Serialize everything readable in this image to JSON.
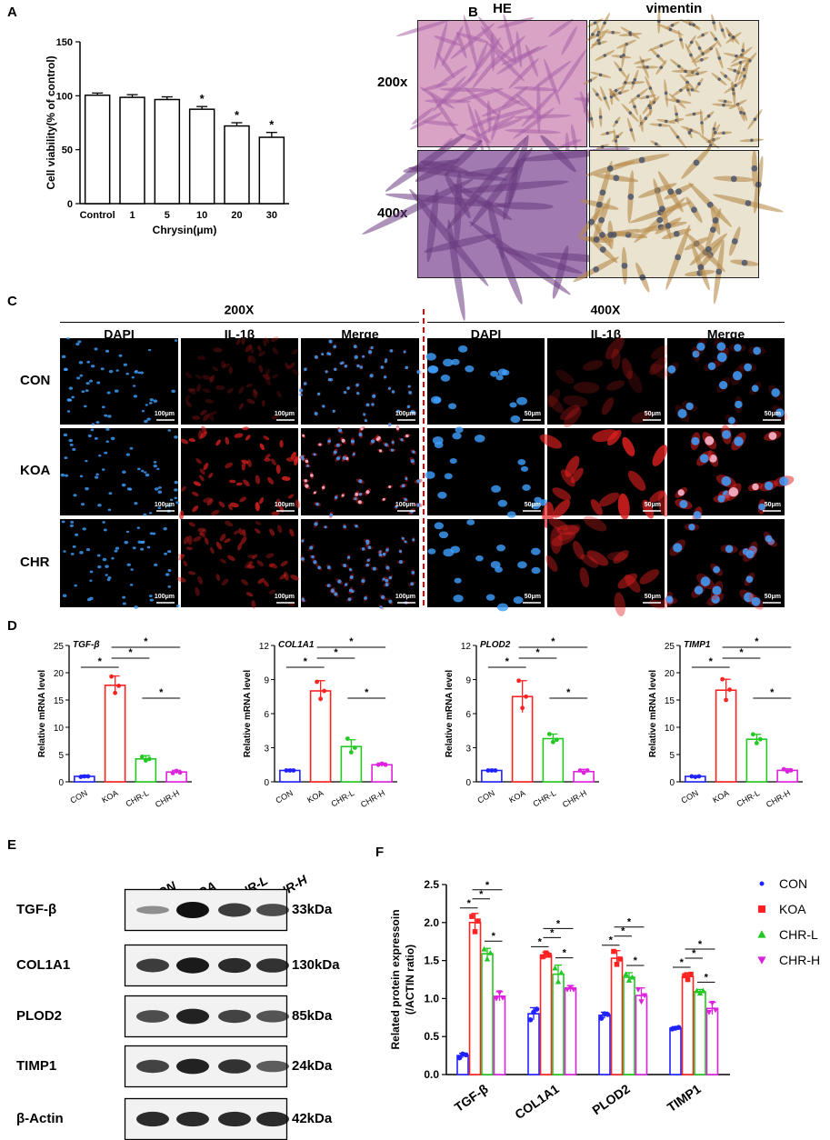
{
  "panel_labels": [
    "A",
    "B",
    "C",
    "D",
    "E",
    "F"
  ],
  "chart_data": [
    {
      "panel": "A",
      "type": "bar",
      "categories": [
        "Control",
        "1",
        "5",
        "10",
        "20",
        "30"
      ],
      "values": [
        100.5,
        98.5,
        96.5,
        87.5,
        72,
        61.5
      ],
      "errors": [
        2,
        2.5,
        2.5,
        2.5,
        3,
        4.5
      ],
      "significance": [
        "",
        "",
        "",
        "*",
        "*",
        "*"
      ],
      "title": "",
      "xlabel": "Chrysin(μm)",
      "ylabel": "Cell viability(% of control)",
      "ylim": [
        0,
        150
      ],
      "yticks": [
        0,
        50,
        100,
        150
      ],
      "colors": {
        "fill": "#ffffff",
        "edge": "#000000"
      },
      "grid": false
    },
    {
      "panel": "D",
      "type": "bar",
      "title": "TGF-β",
      "ylabel": "Relative mRNA level",
      "categories": [
        "CON",
        "KOA",
        "CHR-L",
        "CHR-H"
      ],
      "values": [
        1.0,
        17.7,
        4.2,
        1.8
      ],
      "errors": [
        0.2,
        1.7,
        0.6,
        0.3
      ],
      "points": [
        [
          0.9,
          1.0,
          1.0
        ],
        [
          19.3,
          16.3,
          17.6
        ],
        [
          4.6,
          3.9,
          4.2
        ],
        [
          1.6,
          2.0,
          1.7
        ]
      ],
      "ylim": [
        0,
        25
      ],
      "yticks": [
        0,
        5,
        10,
        15,
        20,
        25
      ],
      "brackets": [
        [
          0,
          1,
          "*"
        ],
        [
          1,
          2,
          "*"
        ],
        [
          1,
          3,
          "*"
        ],
        [
          2,
          3,
          "*"
        ]
      ],
      "colors": [
        "#1f22ff",
        "#ff2222",
        "#23c823",
        "#dd22dd"
      ],
      "grid": false
    },
    {
      "panel": "D",
      "type": "bar",
      "title": "COL1A1",
      "ylabel": "Relative mRNA level",
      "categories": [
        "CON",
        "KOA",
        "CHR-L",
        "CHR-H"
      ],
      "values": [
        1.0,
        8.0,
        3.1,
        1.5
      ],
      "errors": [
        0.1,
        0.9,
        0.6,
        0.15
      ],
      "points": [
        [
          1.0,
          1.0,
          1.0
        ],
        [
          8.8,
          7.3,
          8.0
        ],
        [
          3.8,
          2.6,
          3.0
        ],
        [
          1.5,
          1.6,
          1.5
        ]
      ],
      "ylim": [
        0,
        12
      ],
      "yticks": [
        0,
        3,
        6,
        9,
        12
      ],
      "brackets": [
        [
          0,
          1,
          "*"
        ],
        [
          1,
          2,
          "*"
        ],
        [
          1,
          3,
          "*"
        ],
        [
          2,
          3,
          "*"
        ]
      ],
      "colors": [
        "#1f22ff",
        "#ff2222",
        "#23c823",
        "#dd22dd"
      ],
      "grid": false
    },
    {
      "panel": "D",
      "type": "bar",
      "title": "PLOD2",
      "ylabel": "Relative mRNA level",
      "categories": [
        "CON",
        "KOA",
        "CHR-L",
        "CHR-H"
      ],
      "values": [
        1.0,
        7.5,
        3.8,
        0.9
      ],
      "errors": [
        0.1,
        1.4,
        0.4,
        0.2
      ],
      "points": [
        [
          1.0,
          1.0,
          1.0
        ],
        [
          8.9,
          6.5,
          7.5
        ],
        [
          4.2,
          3.5,
          3.7
        ],
        [
          1.0,
          0.8,
          1.0
        ]
      ],
      "ylim": [
        0,
        12
      ],
      "yticks": [
        0,
        3,
        6,
        9,
        12
      ],
      "brackets": [
        [
          0,
          1,
          "*"
        ],
        [
          1,
          2,
          "*"
        ],
        [
          1,
          3,
          "*"
        ],
        [
          2,
          3,
          "*"
        ]
      ],
      "colors": [
        "#1f22ff",
        "#ff2222",
        "#23c823",
        "#dd22dd"
      ],
      "grid": false
    },
    {
      "panel": "D",
      "type": "bar",
      "title": "TIMP1",
      "ylabel": "Relative mRNA level",
      "categories": [
        "CON",
        "KOA",
        "CHR-L",
        "CHR-H"
      ],
      "values": [
        1.0,
        16.8,
        7.8,
        2.1
      ],
      "errors": [
        0.1,
        2.0,
        0.9,
        0.3
      ],
      "points": [
        [
          1.0,
          0.9,
          1.0
        ],
        [
          18.8,
          15.0,
          16.9
        ],
        [
          8.7,
          7.1,
          7.8
        ],
        [
          2.3,
          1.9,
          2.1
        ]
      ],
      "ylim": [
        0,
        25
      ],
      "yticks": [
        0,
        5,
        10,
        15,
        20,
        25
      ],
      "brackets": [
        [
          0,
          1,
          "*"
        ],
        [
          1,
          2,
          "*"
        ],
        [
          1,
          3,
          "*"
        ],
        [
          2,
          3,
          "*"
        ]
      ],
      "colors": [
        "#1f22ff",
        "#ff2222",
        "#23c823",
        "#dd22dd"
      ],
      "grid": false
    },
    {
      "panel": "F",
      "type": "bar",
      "ylabel_lines": [
        "Related protein expressoin",
        "(/ACTIN ratio)"
      ],
      "categories": [
        "TGF-β",
        "COL1A1",
        "PLOD2",
        "TIMP1"
      ],
      "ylim": [
        0,
        2.5
      ],
      "yticks": [
        0.0,
        0.5,
        1.0,
        1.5,
        2.0,
        2.5
      ],
      "series": [
        {
          "name": "CON",
          "color": "#1f22ff",
          "marker": "circle",
          "values": [
            0.25,
            0.8,
            0.78,
            0.61
          ],
          "errors": [
            0.03,
            0.08,
            0.04,
            0.02
          ],
          "points": [
            [
              0.22,
              0.27,
              0.26
            ],
            [
              0.72,
              0.82,
              0.86
            ],
            [
              0.74,
              0.8,
              0.79
            ],
            [
              0.6,
              0.61,
              0.62
            ]
          ]
        },
        {
          "name": "KOA",
          "color": "#ff2222",
          "marker": "square",
          "values": [
            2.0,
            1.57,
            1.53,
            1.29
          ],
          "errors": [
            0.12,
            0.04,
            0.1,
            0.05
          ],
          "points": [
            [
              2.08,
              1.88,
              2.02
            ],
            [
              1.55,
              1.6,
              1.57
            ],
            [
              1.62,
              1.45,
              1.52
            ],
            [
              1.3,
              1.25,
              1.32
            ]
          ]
        },
        {
          "name": "CHR-L",
          "color": "#23c823",
          "marker": "triangle-up",
          "values": [
            1.59,
            1.32,
            1.28,
            1.09
          ],
          "errors": [
            0.07,
            0.12,
            0.06,
            0.03
          ],
          "points": [
            [
              1.65,
              1.52,
              1.6
            ],
            [
              1.4,
              1.22,
              1.34
            ],
            [
              1.32,
              1.24,
              1.28
            ],
            [
              1.1,
              1.07,
              1.1
            ]
          ]
        },
        {
          "name": "CHR-H",
          "color": "#dd22dd",
          "marker": "triangle-down",
          "values": [
            1.03,
            1.13,
            1.04,
            0.87
          ],
          "errors": [
            0.06,
            0.04,
            0.1,
            0.08
          ],
          "points": [
            [
              1.0,
              1.08,
              1.01
            ],
            [
              1.12,
              1.15,
              1.12
            ],
            [
              1.12,
              0.96,
              1.04
            ],
            [
              0.82,
              0.94,
              0.85
            ]
          ]
        }
      ],
      "brackets": [
        [
          0,
          1,
          "*"
        ],
        [
          1,
          2,
          "*"
        ],
        [
          1,
          3,
          "*"
        ],
        [
          2,
          3,
          "*"
        ]
      ],
      "legend": "right",
      "grid": false
    }
  ],
  "panelB": {
    "columns": [
      "HE",
      "vimentin"
    ],
    "rows": [
      "200x",
      "400x"
    ],
    "colors": {
      "he": "#d9a3c6",
      "he_cell": "#a862a8",
      "he_dark": "#a07ab0",
      "he_dark_cell": "#6a3a80",
      "vim": "#e9e3d0",
      "vim_cell": "#b88a4a",
      "vim_nucleus": "#3a4a6a"
    }
  },
  "panelC": {
    "groups": [
      "200X",
      "400X"
    ],
    "columns": [
      "DAPI",
      "IL-1β",
      "Merge",
      "DAPI",
      "IL-1β",
      "Merge"
    ],
    "rows": [
      "CON",
      "KOA",
      "CHR"
    ],
    "scalebars": [
      "100μm",
      "100μm",
      "100μm",
      "50μm",
      "50μm",
      "50μm"
    ],
    "colors": {
      "dapi": "#3fa0ff",
      "il1b": "#e02020",
      "merge_hi": "#ffc0d8",
      "divider": "#e00000"
    }
  },
  "panelE": {
    "lanes": [
      "CON",
      "KOA",
      "CHR-L",
      "CHR-H"
    ],
    "blots": [
      {
        "name": "TGF-β",
        "kda": "33kDa",
        "intensity": [
          0.25,
          1.0,
          0.75,
          0.65
        ]
      },
      {
        "name": "COL1A1",
        "kda": "130kDa",
        "intensity": [
          0.75,
          0.95,
          0.85,
          0.8
        ]
      },
      {
        "name": "PLOD2",
        "kda": "85kDa",
        "intensity": [
          0.65,
          0.9,
          0.7,
          0.6
        ]
      },
      {
        "name": "TIMP1",
        "kda": "24kDa",
        "intensity": [
          0.7,
          0.9,
          0.8,
          0.55
        ]
      },
      {
        "name": "β-Actin",
        "kda": "42kDa",
        "intensity": [
          0.85,
          0.85,
          0.85,
          0.85
        ]
      }
    ]
  }
}
